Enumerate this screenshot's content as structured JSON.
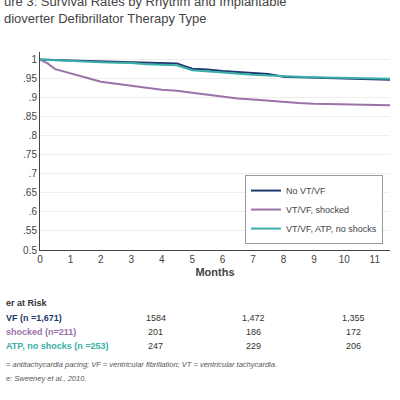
{
  "chart_data": {
    "type": "line",
    "title": "ure 3: Survival Rates by Rhythm and Implantable",
    "subtitle": "dioverter Defibrillator Therapy Type",
    "xlabel": "Months",
    "xlim": [
      0,
      11.5
    ],
    "ylim": [
      0.5,
      1.02
    ],
    "xticks": [
      0,
      1,
      2,
      3,
      4,
      5,
      6,
      7,
      8,
      9,
      10,
      11
    ],
    "yticks": [
      0.5,
      {
        "value": 0.55,
        "label": ".55"
      },
      {
        "value": 0.6,
        "label": ".6"
      },
      {
        "value": 0.65,
        "label": ".65"
      },
      {
        "value": 0.7,
        "label": ".7"
      },
      {
        "value": 0.75,
        "label": ".75"
      },
      {
        "value": 0.8,
        "label": ".8"
      },
      {
        "value": 0.85,
        "label": ".85"
      },
      {
        "value": 0.9,
        "label": ".9"
      },
      {
        "value": 0.95,
        "label": ".95"
      },
      1
    ],
    "grid": "y",
    "legend": "lower right",
    "series": [
      {
        "name": "No VT/VF",
        "color": "#1f3a6e",
        "x": [
          0,
          0.25,
          0.5,
          1.0,
          1.5,
          2.0,
          2.5,
          3.0,
          3.5,
          4.0,
          4.5,
          5.0,
          5.3,
          5.5,
          6.0,
          6.5,
          7.0,
          7.5,
          8.0,
          8.5,
          9.0,
          9.5,
          10.0,
          10.5,
          11.0,
          11.5
        ],
        "values": [
          1.0,
          1.0,
          0.999,
          0.998,
          0.997,
          0.996,
          0.995,
          0.994,
          0.992,
          0.991,
          0.99,
          0.976,
          0.975,
          0.974,
          0.97,
          0.968,
          0.965,
          0.962,
          0.955,
          0.954,
          0.953,
          0.952,
          0.951,
          0.95,
          0.948,
          0.947
        ]
      },
      {
        "name": "VT/VF, shocked",
        "color": "#9b72aa",
        "x": [
          0,
          0.25,
          0.5,
          1.0,
          1.5,
          2.0,
          2.5,
          3.0,
          3.5,
          4.0,
          4.5,
          5.0,
          5.5,
          6.0,
          6.3,
          6.5,
          7.0,
          7.5,
          8.0,
          8.5,
          9.0,
          9.5,
          10.0,
          10.5,
          11.0,
          11.5
        ],
        "values": [
          1.0,
          0.99,
          0.975,
          0.963,
          0.953,
          0.942,
          0.936,
          0.931,
          0.926,
          0.921,
          0.918,
          0.913,
          0.908,
          0.902,
          0.9,
          0.898,
          0.895,
          0.892,
          0.888,
          0.886,
          0.884,
          0.883,
          0.882,
          0.882,
          0.881,
          0.88
        ]
      },
      {
        "name": "VT/VF, ATP, no shocks",
        "color": "#3aafa9",
        "x": [
          0,
          0.25,
          0.5,
          1.0,
          1.5,
          2.0,
          2.5,
          3.0,
          3.5,
          4.0,
          4.5,
          5.0,
          5.3,
          5.5,
          6.0,
          6.5,
          7.0,
          7.5,
          8.0,
          8.5,
          9.0,
          9.5,
          10.0,
          10.5,
          11.0,
          11.5
        ],
        "values": [
          1.0,
          0.999,
          0.998,
          0.997,
          0.995,
          0.993,
          0.992,
          0.991,
          0.988,
          0.987,
          0.985,
          0.972,
          0.97,
          0.969,
          0.965,
          0.962,
          0.96,
          0.958,
          0.956,
          0.955,
          0.954,
          0.953,
          0.952,
          0.951,
          0.95,
          0.95
        ]
      }
    ],
    "risk_table": {
      "title": "er at Risk",
      "rows": [
        {
          "label": "VF (n =1,671)",
          "color": "#1f3a6e",
          "values": [
            "1584",
            "1,472",
            "1,355"
          ]
        },
        {
          "label": "shocked (n=211)",
          "color": "#9b72aa",
          "values": [
            "201",
            "186",
            "172"
          ]
        },
        {
          "label": "ATP, no shocks (n =253)",
          "color": "#3aafa9",
          "values": [
            "247",
            "229",
            "206"
          ]
        }
      ]
    },
    "footnotes": [
      "= antitachycardia pacing; VF = ventricular fibrillation; VT = ventricular tachycardia.",
      "e: Sweeney et al., 2010."
    ]
  }
}
